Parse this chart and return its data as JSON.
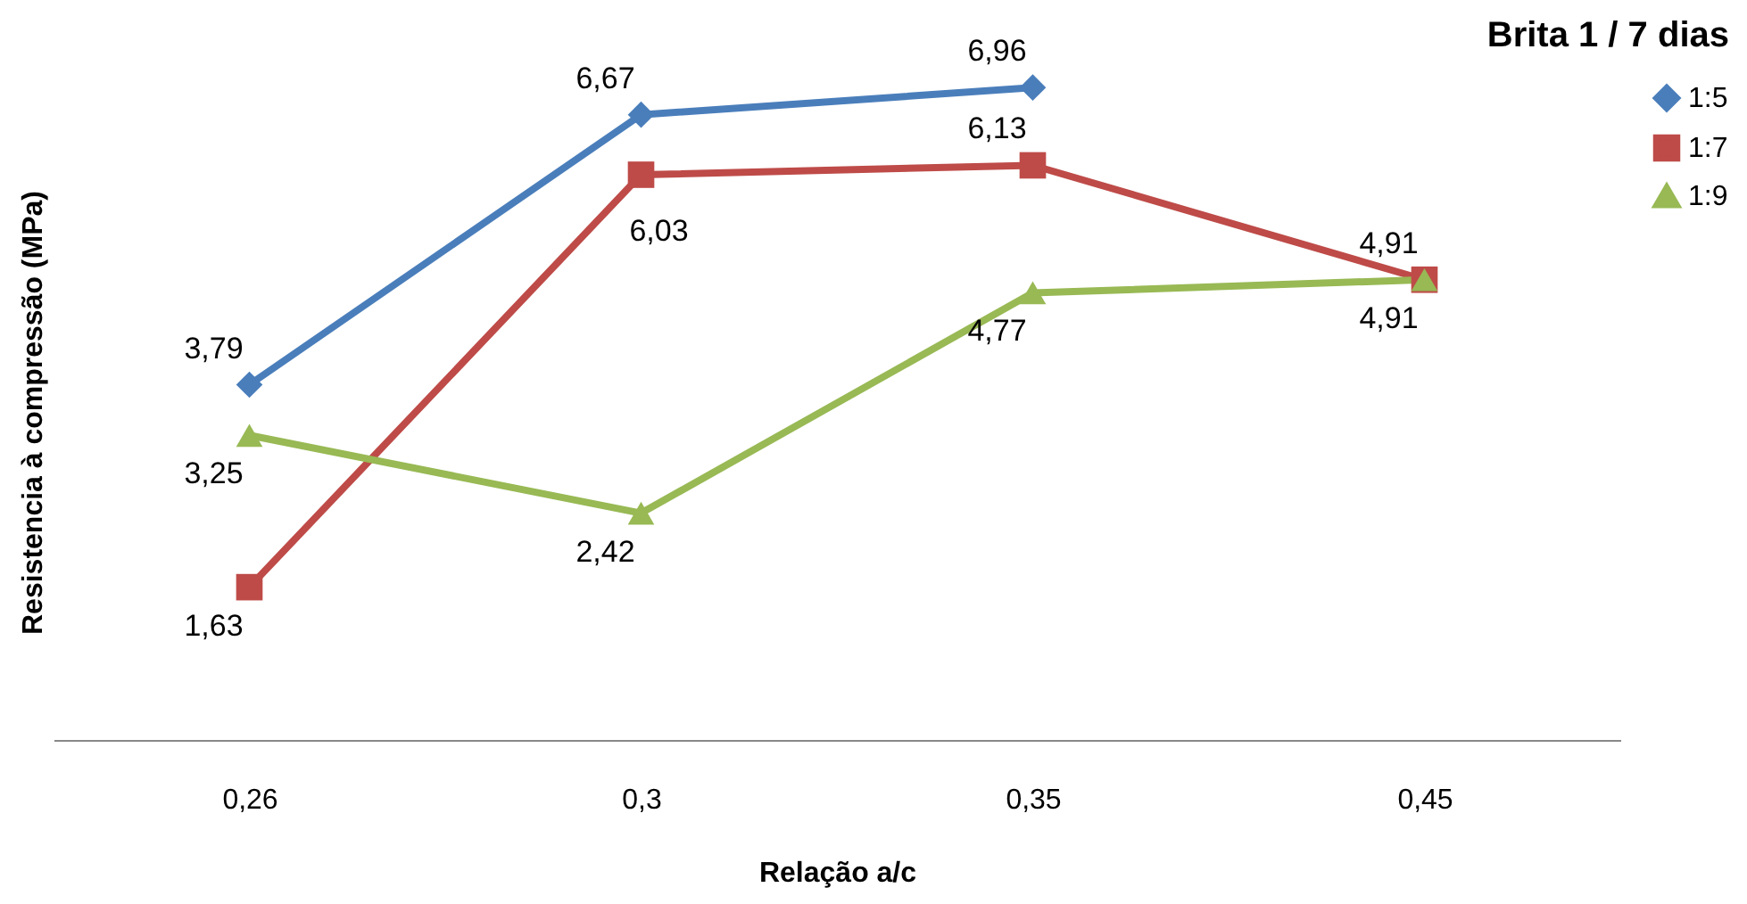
{
  "chart_data": {
    "type": "line",
    "title": "Brita 1 / 7 dias",
    "xlabel": "Relação a/c",
    "ylabel": "Resistencia à compressão (MPa)",
    "categories": [
      "0,26",
      "0,3",
      "0,35",
      "0,45"
    ],
    "series": [
      {
        "name": "1:5",
        "color": "#4a7ebb",
        "marker": "diamond",
        "values": [
          3.79,
          6.67,
          6.96,
          null
        ],
        "value_labels": [
          "3,79",
          "6,67",
          "6,96",
          null
        ]
      },
      {
        "name": "1:7",
        "color": "#be4b48",
        "marker": "square",
        "values": [
          1.63,
          6.03,
          6.13,
          4.91
        ],
        "value_labels": [
          "1,63",
          "6,03",
          "6,13",
          "4,91"
        ]
      },
      {
        "name": "1:9",
        "color": "#98b954",
        "marker": "triangle",
        "values": [
          3.25,
          2.42,
          4.77,
          4.91
        ],
        "value_labels": [
          "3,25",
          "2,42",
          "4,77",
          "4,91"
        ]
      }
    ],
    "grid": false,
    "legend": "right"
  }
}
